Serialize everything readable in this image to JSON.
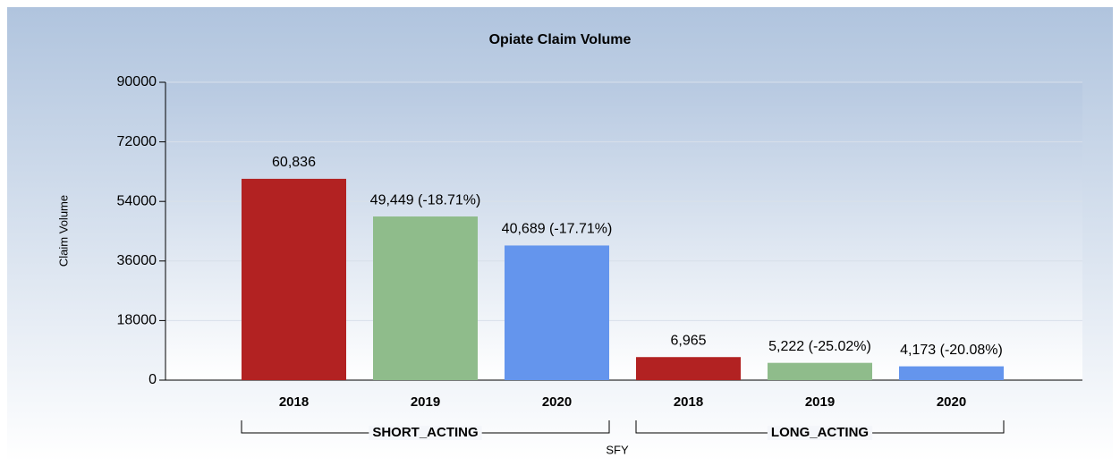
{
  "chart_data": {
    "type": "bar",
    "title": "Opiate Claim Volume",
    "y_label": "Claim Volume",
    "x_label": "SFY",
    "categories": [
      "SHORT_ACTING",
      "LONG_ACTING"
    ],
    "series": [
      {
        "name": "2018",
        "color": "#b22222",
        "values": [
          60836,
          6965
        ],
        "value_labels": [
          "60,836",
          "6,965"
        ]
      },
      {
        "name": "2019",
        "color": "#8fbc8b",
        "values": [
          49449,
          5222
        ],
        "value_labels": [
          "49,449 (-18.71%)",
          "5,222 (-25.02%)"
        ]
      },
      {
        "name": "2020",
        "color": "#6495ed",
        "values": [
          40689,
          4173
        ],
        "value_labels": [
          "40,689 (-17.71%)",
          "4,173 (-20.08%)"
        ]
      }
    ],
    "ylim": [
      0,
      90000
    ],
    "yticks": [
      0,
      18000,
      36000,
      54000,
      72000,
      90000
    ],
    "grid": true
  }
}
